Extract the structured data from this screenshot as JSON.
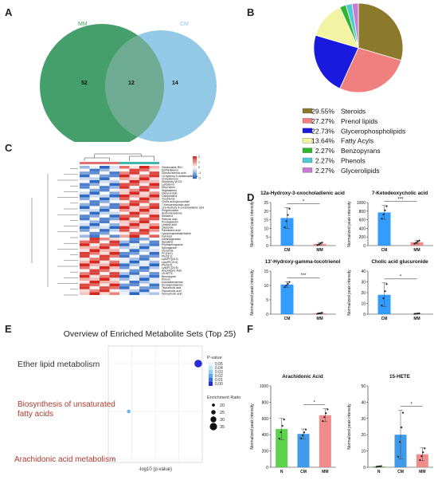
{
  "panel_labels": {
    "a": "A",
    "b": "B",
    "c": "C",
    "d": "D",
    "e": "E",
    "f": "F"
  },
  "venn": {
    "set_left": "MM",
    "set_right": "CM",
    "only_left": "52",
    "overlap": "12",
    "only_right": "14",
    "colors": {
      "left": "#3a9a62",
      "right": "#8cc6e6",
      "overlap": "#6aaa8a"
    }
  },
  "pie": {
    "legend": [
      {
        "pct": "29.55%",
        "label": "Steroids",
        "value": 29.55,
        "color": "#8c7a2c"
      },
      {
        "pct": "27.27%",
        "label": "Prenol lipids",
        "value": 27.27,
        "color": "#f08080"
      },
      {
        "pct": "22.73%",
        "label": "Glycerophospholipids",
        "value": 22.73,
        "color": "#1a1adf"
      },
      {
        "pct": "13.64%",
        "label": "Fatty Acyls",
        "value": 13.64,
        "color": "#f3f3a4"
      },
      {
        "pct": "2.27%",
        "label": "Benzopyrans",
        "value": 2.27,
        "color": "#2fb52f"
      },
      {
        "pct": "2.27%",
        "label": "Phenols",
        "value": 2.27,
        "color": "#4fc9d6"
      },
      {
        "pct": "2.27%",
        "label": "Glycerolipids",
        "value": 2.27,
        "color": "#c77ad6"
      }
    ]
  },
  "heatmap": {
    "rows": [
      "Ginsenoside Rb1",
      "Epifriedelanol",
      "Docosa trienoic acid",
      "13-hydroxy-9-octadecadienoic",
      "Cholestenone",
      "Dihydroxy-Vit D3",
      "Lanosterol",
      "Ethyl sterol",
      "Stigmasterol",
      "Glycerol lipid",
      "Campesterol",
      "Tocotrienol",
      "Cholic acid glucuronide",
      "7-Ketodeoxycholic acid",
      "12a-Hydroxy-3-oxocholadienic acid",
      "Pregnenolone",
      "Androstenedione",
      "Sitosterol",
      "Retinoic acid",
      "Prostaglandin",
      "Linoleic acid",
      "Oleamide",
      "Palmitoleic acid",
      "Lysophosphatidylcholine",
      "Farnesol",
      "Geranylgeraniol",
      "Squalene",
      "Phytosphingosine",
      "Sphinganine",
      "Ceramide",
      "PC(16:0)",
      "PE(18:1)",
      "LysoPC(18:2)",
      "LysoPE(20:4)",
      "PS(18:0)",
      "LysoPC(20:5)",
      "Arachidonic Acid",
      "15-HETE",
      "Benzopyran",
      "Phenol",
      "Docosahexaenoic",
      "Eicosapentaenoic",
      "Taurocholic acid",
      "Glycocholic acid",
      "Deoxycholic acid"
    ],
    "color_scale": [
      "#1f5fbf",
      "#ffffff",
      "#d7261e"
    ],
    "legend_ticks": [
      "2",
      "1",
      "0",
      "-1",
      "-2"
    ]
  },
  "bars_d": [
    {
      "title": "12a-Hydroxy-3-oxocholadienic acid",
      "ylabel": "Normalized peak intensity",
      "categories": [
        "CM",
        "MM"
      ],
      "values": [
        16,
        1
      ],
      "errors": [
        6,
        0.8
      ],
      "ylim": [
        0,
        25
      ],
      "yticks": [
        "0",
        "5",
        "10",
        "15",
        "20",
        "25"
      ],
      "sig": "*",
      "colors": [
        "#1e90ff",
        "#f08080"
      ]
    },
    {
      "title": "7-Ketodeoxycholic acid",
      "ylabel": "Normalized peak intensity",
      "categories": [
        "CM",
        "MM"
      ],
      "values": [
        770,
        80
      ],
      "errors": [
        160,
        40
      ],
      "ylim": [
        0,
        1000
      ],
      "yticks": [
        "0",
        "200",
        "400",
        "600",
        "800",
        "1000"
      ],
      "sig": "***",
      "colors": [
        "#1e90ff",
        "#f08080"
      ]
    },
    {
      "title": "13'-Hydroxy-gamma-tocotrienol",
      "ylabel": "Normalized peak intensity",
      "categories": [
        "CM",
        "MM"
      ],
      "values": [
        10.3,
        0.3
      ],
      "errors": [
        1,
        0.2
      ],
      "ylim": [
        0,
        15
      ],
      "yticks": [
        "0",
        "5",
        "10",
        "15"
      ],
      "sig": "***",
      "colors": [
        "#1e90ff",
        "#f08080"
      ]
    },
    {
      "title": "Cholic acid glucuronide",
      "ylabel": "Normalized peak intensity",
      "categories": [
        "CM",
        "MM"
      ],
      "values": [
        18,
        0.5
      ],
      "errors": [
        11,
        0.3
      ],
      "ylim": [
        0,
        40
      ],
      "yticks": [
        "0",
        "10",
        "20",
        "30",
        "40"
      ],
      "sig": "*",
      "colors": [
        "#1e90ff",
        "#f08080"
      ]
    }
  ],
  "enrichment": {
    "title": "Overview of Enriched Metabolite Sets (Top 25)",
    "xlabel": "-log10 (p-value)",
    "pvalue_label": "P-value",
    "pvalue_ticks": [
      "0.05",
      "0.04",
      "0.03",
      "0.02",
      "0.01",
      "0.00"
    ],
    "ratio_label": "Enrichment Ratio",
    "ratio_ticks": [
      "20",
      "25",
      "30",
      "35"
    ],
    "points": [
      {
        "label": "Ether lipid metabolism",
        "x": 2.35,
        "ratio": 36,
        "color": "#2b2bd1",
        "label_color": "#333333"
      },
      {
        "label": "Biosynthesis of unsaturated fatty acids",
        "x": 1.5,
        "ratio": 22,
        "color": "#62b7f4",
        "label_color": "#b03a2e"
      },
      {
        "label": "Arachidonic acid metabolism",
        "x": 1.31,
        "ratio": 18,
        "color": "#a8dcf5",
        "label_color": "#b03a2e"
      }
    ]
  },
  "bars_f": [
    {
      "title": "Arachidonic Acid",
      "ylabel": "Normalized peak intensity",
      "categories": [
        "N",
        "CM",
        "MM"
      ],
      "values": [
        470,
        410,
        640
      ],
      "errors": [
        130,
        60,
        80
      ],
      "ylim": [
        0,
        1000
      ],
      "yticks": [
        "0",
        "200",
        "400",
        "600",
        "800",
        "1000"
      ],
      "sig": "*",
      "colors": [
        "#4ccd3a",
        "#2b8fe8",
        "#f08080"
      ]
    },
    {
      "title": "15-HETE",
      "ylabel": "Normalized peak intensity",
      "categories": [
        "N",
        "CM",
        "MM"
      ],
      "values": [
        0.5,
        20,
        8
      ],
      "errors": [
        0.3,
        15,
        4
      ],
      "ylim": [
        0,
        50
      ],
      "yticks": [
        "0",
        "10",
        "20",
        "30",
        "40",
        "50"
      ],
      "sig": "*",
      "colors": [
        "#4ccd3a",
        "#2b8fe8",
        "#f08080"
      ]
    }
  ]
}
